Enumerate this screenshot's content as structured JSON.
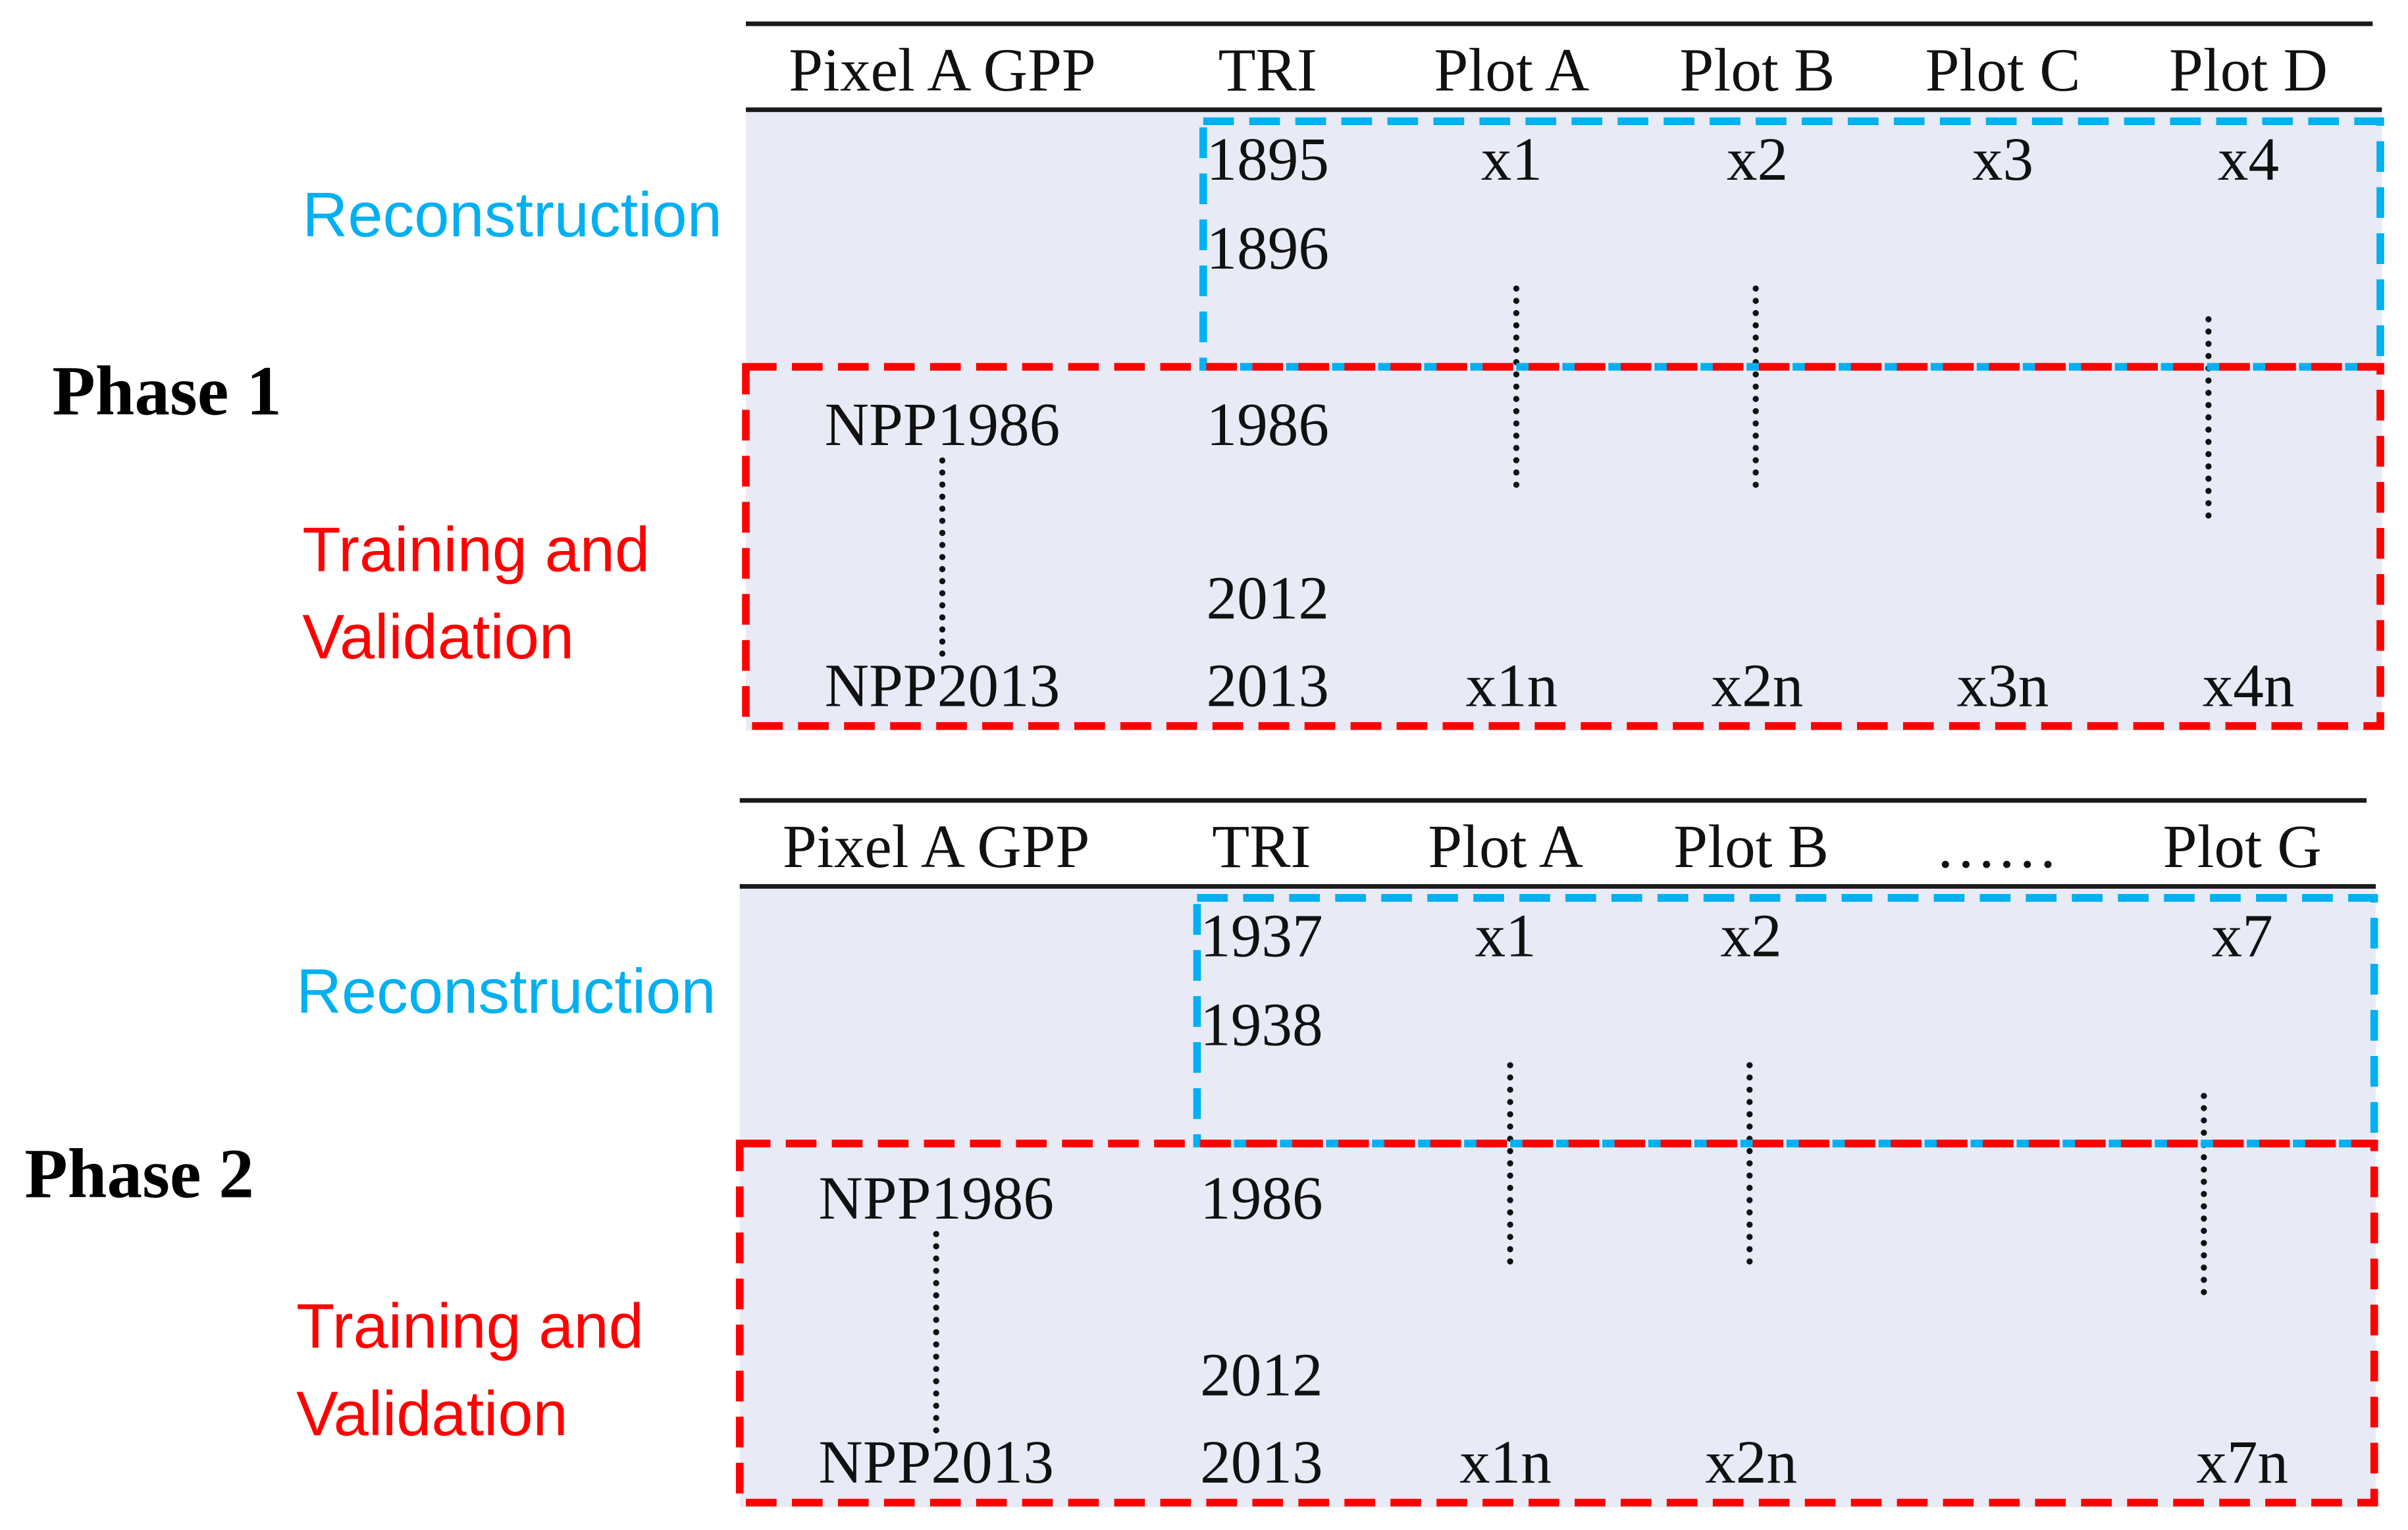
{
  "colors": {
    "reconstruction": "#00b0f0",
    "training": "#ff0000",
    "table_bg": "#e8eaf6"
  },
  "phases": [
    {
      "label": "Phase 1",
      "headers": [
        "Pixel A GPP",
        "TRI",
        "Plot A",
        "Plot B",
        "Plot C",
        "Plot D"
      ],
      "reconstruction_label": "Reconstruction",
      "training_label_line1": "Training and",
      "training_label_line2": "Validation",
      "tri_years": [
        "1895",
        "1896",
        "1986",
        "2012",
        "2013"
      ],
      "npp_first": "NPP1986",
      "npp_last": "NPP2013",
      "first_row_values": [
        "x1",
        "x2",
        "x3",
        "x4"
      ],
      "last_row_values": [
        "x1n",
        "x2n",
        "x3n",
        "x4n"
      ]
    },
    {
      "label": "Phase 2",
      "headers": [
        "Pixel A GPP",
        "TRI",
        "Plot A",
        "Plot B",
        "……",
        "Plot G"
      ],
      "reconstruction_label": "Reconstruction",
      "training_label_line1": "Training and",
      "training_label_line2": "Validation",
      "tri_years": [
        "1937",
        "1938",
        "1986",
        "2012",
        "2013"
      ],
      "npp_first": "NPP1986",
      "npp_last": "NPP2013",
      "first_row_values": [
        "x1",
        "x2",
        "x7"
      ],
      "last_row_values": [
        "x1n",
        "x2n",
        "x7n"
      ]
    }
  ]
}
